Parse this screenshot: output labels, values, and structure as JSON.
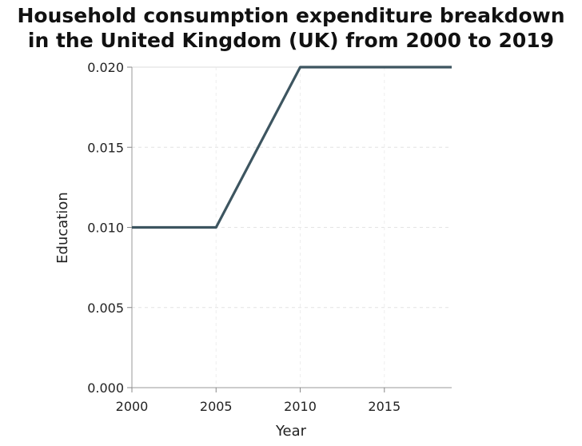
{
  "chart_data": {
    "type": "line",
    "title_lines": [
      "Household consumption expenditure breakdown",
      "in the United Kingdom (UK) from 2000 to 2019"
    ],
    "xlabel": "Year",
    "ylabel": "Education",
    "xlim": [
      2000,
      2019
    ],
    "ylim": [
      0,
      0.02
    ],
    "xticks": [
      2000,
      2005,
      2010,
      2015
    ],
    "xtick_labels": [
      "2000",
      "2005",
      "2010",
      "2015"
    ],
    "yticks": [
      0,
      0.005,
      0.01,
      0.015,
      0.02
    ],
    "ytick_labels": [
      "0.000",
      "0.005",
      "0.010",
      "0.015",
      "0.020"
    ],
    "grid": true,
    "series": [
      {
        "x": [
          2000,
          2005,
          2010,
          2019
        ],
        "y": [
          0.01,
          0.01,
          0.02,
          0.02
        ],
        "color": "#3d5560"
      }
    ]
  }
}
